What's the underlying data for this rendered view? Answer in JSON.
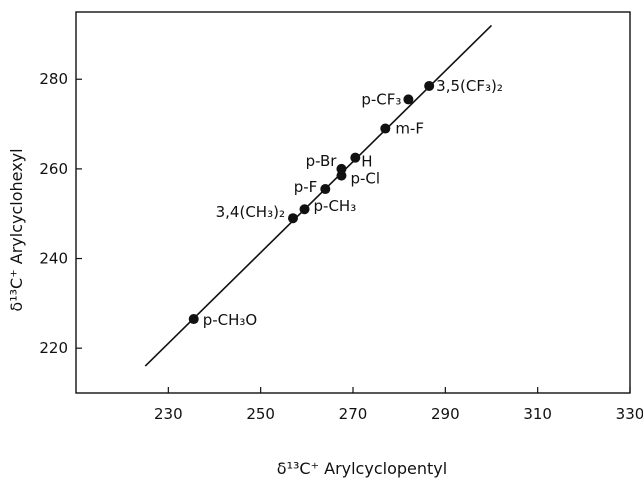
{
  "chart_data": {
    "type": "scatter",
    "xlabel": "δ¹³C⁺ Arylcyclopentyl",
    "ylabel": "δ¹³C⁺ Arylcyclohexyl",
    "xlim": [
      210,
      330
    ],
    "ylim": [
      210,
      295
    ],
    "x_ticks": [
      230,
      250,
      270,
      290,
      310,
      330
    ],
    "y_ticks": [
      220,
      240,
      260,
      280
    ],
    "grid": false,
    "fit_line": {
      "x": [
        225,
        300
      ],
      "y": [
        216,
        292
      ]
    },
    "points": [
      {
        "label": "p-CH₃O",
        "x": 235.5,
        "y": 226.5
      },
      {
        "label": "3,4(CH₃)₂",
        "x": 257.0,
        "y": 249.0
      },
      {
        "label": "p-CH₃",
        "x": 259.5,
        "y": 251.0
      },
      {
        "label": "p-F",
        "x": 264.0,
        "y": 255.5
      },
      {
        "label": "p-Cl",
        "x": 267.5,
        "y": 258.5
      },
      {
        "label": "p-Br",
        "x": 267.5,
        "y": 260.0
      },
      {
        "label": "H",
        "x": 270.5,
        "y": 262.5
      },
      {
        "label": "m-F",
        "x": 277.0,
        "y": 269.0
      },
      {
        "label": "p-CF₃",
        "x": 282.0,
        "y": 275.5
      },
      {
        "label": "3,5(CF₃)₂",
        "x": 286.5,
        "y": 278.5
      }
    ]
  }
}
